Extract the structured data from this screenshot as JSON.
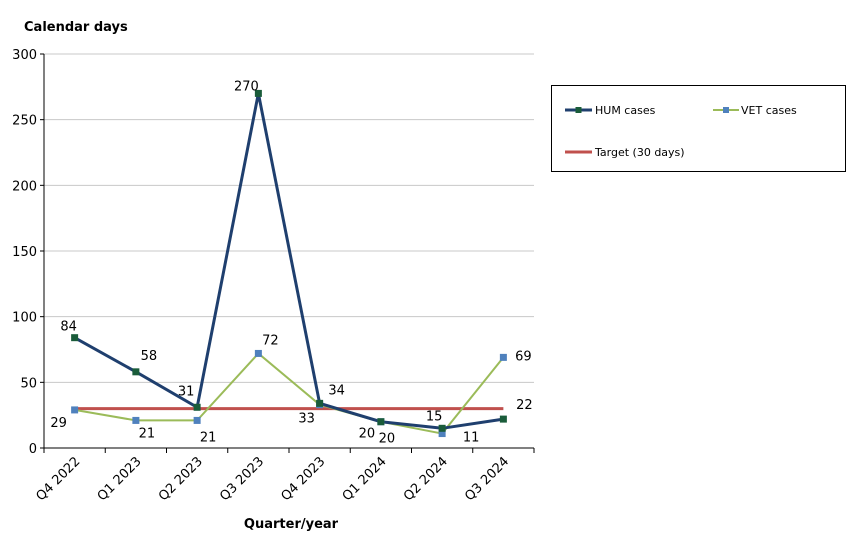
{
  "chart_data": {
    "type": "line",
    "ylabel": "Calendar days",
    "xlabel": "Quarter/year",
    "categories": [
      "Q4 2022",
      "Q1 2023",
      "Q2 2023",
      "Q3 2023",
      "Q4 2023",
      "Q1 2024",
      "Q2 2024",
      "Q3 2024"
    ],
    "ylim": [
      0,
      300
    ],
    "yticks": [
      0,
      50,
      100,
      150,
      200,
      250,
      300
    ],
    "grid": true,
    "legend_position": "right",
    "series": [
      {
        "name": "HUM cases",
        "values": [
          84,
          58,
          31,
          270,
          34,
          20,
          15,
          22
        ],
        "color": "#1f3f6e",
        "marker_color": "#1a5c3a"
      },
      {
        "name": "VET cases",
        "values": [
          29,
          21,
          21,
          72,
          33,
          20,
          11,
          69
        ],
        "color": "#9bbb59",
        "marker_color": "#4f81bd"
      },
      {
        "name": "Target (30 days)",
        "values": [
          30,
          30,
          30,
          30,
          30,
          30,
          30,
          30
        ],
        "color": "#c0504d"
      }
    ]
  }
}
